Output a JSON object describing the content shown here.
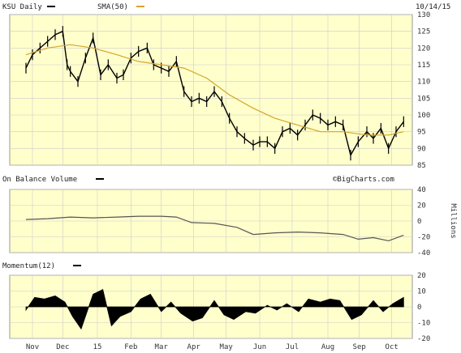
{
  "header": {
    "symbol_label": "KSU Daily",
    "sma_label": "SMA(50)",
    "date": "10/14/15",
    "symbol_line_color": "#000000",
    "sma_line_color": "#d4a52a"
  },
  "colors": {
    "panel_bg": "#ffffcc",
    "grid": "#cccccc",
    "price": "#000000",
    "sma": "#d4a52a",
    "obv": "#555555",
    "momentum": "#000000"
  },
  "chart_data": [
    {
      "type": "line",
      "panel": "price",
      "series": [
        {
          "name": "KSU Daily",
          "x": [
            "2014-10-28",
            "2014-11-03",
            "2014-11-10",
            "2014-11-17",
            "2014-11-24",
            "2014-12-01",
            "2014-12-05",
            "2014-12-08",
            "2014-12-15",
            "2014-12-22",
            "2014-12-29",
            "2015-01-05",
            "2015-01-12",
            "2015-01-20",
            "2015-01-26",
            "2015-02-02",
            "2015-02-09",
            "2015-02-17",
            "2015-02-23",
            "2015-03-02",
            "2015-03-09",
            "2015-03-16",
            "2015-03-23",
            "2015-03-30",
            "2015-04-06",
            "2015-04-13",
            "2015-04-20",
            "2015-04-27",
            "2015-05-04",
            "2015-05-11",
            "2015-05-18",
            "2015-05-26",
            "2015-06-01",
            "2015-06-08",
            "2015-06-15",
            "2015-06-22",
            "2015-06-29",
            "2015-07-06",
            "2015-07-13",
            "2015-07-20",
            "2015-07-27",
            "2015-08-03",
            "2015-08-10",
            "2015-08-17",
            "2015-08-24",
            "2015-08-31",
            "2015-09-08",
            "2015-09-14",
            "2015-09-21",
            "2015-09-28",
            "2015-10-05",
            "2015-10-12"
          ],
          "values": [
            114,
            118,
            120,
            122,
            124,
            125,
            115,
            113,
            110,
            117,
            123,
            112,
            115,
            111,
            112,
            117,
            119,
            120,
            115,
            114,
            113,
            116,
            107,
            104,
            105,
            104,
            107,
            104,
            99,
            95,
            93,
            91,
            92,
            92,
            90,
            95,
            96,
            94,
            97,
            100,
            99,
            97,
            98,
            97,
            88,
            92,
            95,
            93,
            96,
            90,
            95,
            98
          ]
        },
        {
          "name": "SMA(50)",
          "x": [
            "2014-10-28",
            "2014-11-17",
            "2014-12-08",
            "2014-12-29",
            "2015-01-20",
            "2015-02-09",
            "2015-03-02",
            "2015-03-23",
            "2015-04-13",
            "2015-05-04",
            "2015-05-26",
            "2015-06-15",
            "2015-07-06",
            "2015-07-27",
            "2015-08-17",
            "2015-09-08",
            "2015-09-28",
            "2015-10-12"
          ],
          "values": [
            118,
            120,
            121,
            120,
            118,
            116,
            115,
            114,
            111,
            106,
            102,
            99,
            97,
            95,
            95,
            94,
            94,
            95
          ]
        }
      ],
      "ylim": [
        85,
        130
      ],
      "yticks": [
        85,
        90,
        95,
        100,
        105,
        110,
        115,
        120,
        125,
        130
      ],
      "grid": true
    },
    {
      "type": "line",
      "panel": "obv",
      "title": "On Balance Volume",
      "ylabel": "Millions",
      "series": [
        {
          "name": "On Balance Volume",
          "x": [
            "2014-10-28",
            "2014-11-17",
            "2014-12-08",
            "2014-12-29",
            "2015-01-20",
            "2015-02-09",
            "2015-03-02",
            "2015-03-16",
            "2015-03-30",
            "2015-04-20",
            "2015-05-11",
            "2015-05-26",
            "2015-06-15",
            "2015-07-06",
            "2015-07-27",
            "2015-08-17",
            "2015-08-31",
            "2015-09-14",
            "2015-09-28",
            "2015-10-12"
          ],
          "values": [
            2,
            3,
            5,
            4,
            5,
            6,
            6,
            5,
            -2,
            -3,
            -8,
            -17,
            -15,
            -14,
            -15,
            -17,
            -23,
            -21,
            -25,
            -18
          ]
        }
      ],
      "ylim": [
        -40,
        40
      ],
      "yticks": [
        -40,
        -20,
        0,
        20,
        40
      ],
      "grid": true
    },
    {
      "type": "area",
      "panel": "momentum",
      "title": "Momentum(12)",
      "series": [
        {
          "name": "Momentum(12)",
          "x": [
            "2014-10-28",
            "2014-11-05",
            "2014-11-14",
            "2014-11-24",
            "2014-12-03",
            "2014-12-10",
            "2014-12-18",
            "2014-12-29",
            "2015-01-07",
            "2015-01-15",
            "2015-01-23",
            "2015-02-02",
            "2015-02-11",
            "2015-02-20",
            "2015-03-02",
            "2015-03-11",
            "2015-03-20",
            "2015-03-31",
            "2015-04-09",
            "2015-04-20",
            "2015-04-29",
            "2015-05-08",
            "2015-05-19",
            "2015-05-28",
            "2015-06-08",
            "2015-06-17",
            "2015-06-26",
            "2015-07-07",
            "2015-07-16",
            "2015-07-27",
            "2015-08-05",
            "2015-08-14",
            "2015-08-25",
            "2015-09-03",
            "2015-09-14",
            "2015-09-23",
            "2015-10-02",
            "2015-10-12"
          ],
          "values": [
            -2,
            6,
            5,
            7,
            3,
            -6,
            -14,
            8,
            11,
            -12,
            -6,
            -3,
            5,
            8,
            -3,
            3,
            -4,
            -9,
            -7,
            4,
            -5,
            -8,
            -3,
            -4,
            1,
            -2,
            2,
            -3,
            5,
            3,
            5,
            4,
            -8,
            -5,
            4,
            -3,
            2,
            6
          ]
        }
      ],
      "ylim": [
        -20,
        20
      ],
      "yticks": [
        -20,
        -10,
        0,
        10,
        20
      ],
      "grid": true
    }
  ],
  "x_axis": {
    "range": [
      "2014-10-13",
      "2015-10-20"
    ],
    "ticks": [
      {
        "label": "Nov",
        "date": "2014-11-03"
      },
      {
        "label": "Dec",
        "date": "2014-12-01"
      },
      {
        "label": "15",
        "date": "2015-01-02"
      },
      {
        "label": "Feb",
        "date": "2015-02-02"
      },
      {
        "label": "Mar",
        "date": "2015-03-02"
      },
      {
        "label": "Apr",
        "date": "2015-04-01"
      },
      {
        "label": "May",
        "date": "2015-05-01"
      },
      {
        "label": "Jun",
        "date": "2015-06-01"
      },
      {
        "label": "Jul",
        "date": "2015-07-01"
      },
      {
        "label": "Aug",
        "date": "2015-08-03"
      },
      {
        "label": "Sep",
        "date": "2015-09-01"
      },
      {
        "label": "Oct",
        "date": "2015-10-01"
      }
    ]
  },
  "watermark": "©BigCharts.com"
}
